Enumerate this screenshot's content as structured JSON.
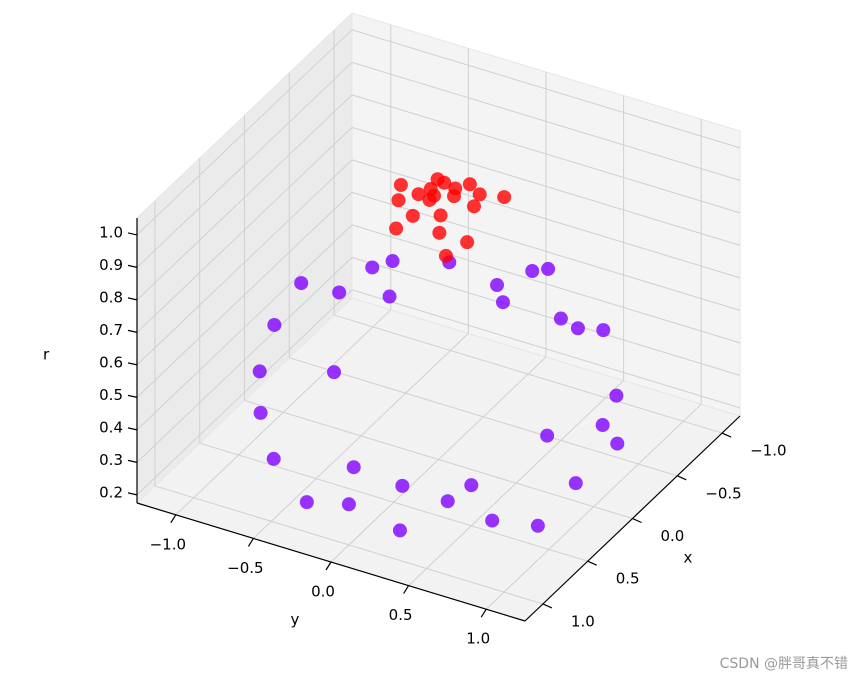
{
  "chart_data": {
    "type": "scatter3d",
    "xlabel": "x",
    "ylabel": "y",
    "zlabel": "r",
    "xlim": [
      -1.2,
      1.2
    ],
    "ylim": [
      -1.25,
      1.25
    ],
    "zlim": [
      0.175,
      1.052
    ],
    "xticks": [
      {
        "value": -1,
        "label": "−1.0"
      },
      {
        "value": -0.5,
        "label": "−0.5"
      },
      {
        "value": 0,
        "label": "0.0"
      },
      0.5,
      {
        "value": 1,
        "label": "1.0"
      }
    ],
    "yticks": [
      {
        "value": -1,
        "label": "−1.0"
      },
      {
        "value": -0.5,
        "label": "−0.5"
      },
      {
        "value": 0,
        "label": "0.0"
      },
      0.5,
      {
        "value": 1,
        "label": "1.0"
      }
    ],
    "zticks": [
      0.2,
      0.3,
      0.4,
      0.5,
      0.6,
      0.7,
      0.8,
      0.9,
      {
        "value": 1,
        "label": "1.0"
      }
    ],
    "grid": true,
    "series": [
      {
        "color": "#8000ff",
        "x": [
          1.0,
          0.95,
          0.85,
          0.7,
          0.45,
          0.2,
          -0.1,
          -0.35,
          -0.6,
          -0.8,
          -0.95,
          -1.05,
          -1.0,
          -0.9,
          -0.7,
          -0.45,
          -0.2,
          0.1,
          0.35,
          0.6,
          0.8,
          0.95,
          0.5,
          -0.5,
          0.3,
          0.75,
          -0.3,
          0.0,
          -0.7,
          0.6,
          -0.2,
          0.2
        ],
        "y": [
          0.0,
          0.3,
          0.55,
          0.75,
          0.9,
          1.0,
          1.0,
          0.95,
          0.8,
          0.6,
          0.35,
          0.1,
          -0.2,
          -0.45,
          -0.7,
          -0.9,
          -1.0,
          -1.0,
          -0.95,
          -0.8,
          -0.6,
          -0.3,
          0.5,
          0.5,
          -0.5,
          0.2,
          -0.6,
          0.7,
          0.2,
          -0.2,
          0.3,
          -0.2
        ],
        "z": [
          0.3,
          0.25,
          0.35,
          0.28,
          0.22,
          0.3,
          0.4,
          0.27,
          0.33,
          0.45,
          0.38,
          0.5,
          0.42,
          0.48,
          0.5,
          0.44,
          0.52,
          0.47,
          0.4,
          0.36,
          0.3,
          0.25,
          0.3,
          0.55,
          0.45,
          0.32,
          0.6,
          0.35,
          0.6,
          0.28,
          0.65,
          0.7
        ]
      },
      {
        "color": "#ff0000",
        "x": [
          0.1,
          0.0,
          -0.1,
          0.05,
          0.15,
          -0.15,
          0.2,
          -0.05,
          0.1,
          -0.2,
          0.25,
          -0.25,
          0.3,
          -0.1,
          0.2,
          -0.3,
          0.05,
          0.0,
          -0.35,
          0.35
        ],
        "y": [
          0.0,
          0.1,
          0.05,
          -0.1,
          0.1,
          -0.05,
          -0.05,
          0.2,
          -0.2,
          0.15,
          0.15,
          -0.15,
          -0.1,
          -0.3,
          0.3,
          0.25,
          0.0,
          -0.05,
          0.0,
          0.25
        ],
        "z": [
          1.0,
          1.0,
          0.99,
          0.99,
          0.98,
          0.98,
          0.97,
          0.97,
          0.97,
          0.96,
          0.96,
          0.95,
          0.95,
          0.95,
          0.94,
          0.94,
          1.0,
          1.0,
          0.93,
          0.93
        ]
      }
    ]
  },
  "watermark": "CSDN @胖哥真不错"
}
